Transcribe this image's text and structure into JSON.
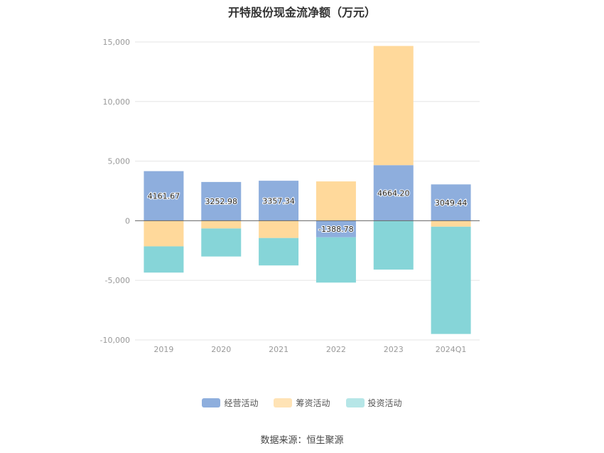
{
  "chart_data": {
    "type": "bar",
    "stacked": true,
    "title": "开特股份现金流净额（万元）",
    "categories": [
      "2019",
      "2020",
      "2021",
      "2022",
      "2023",
      "2024Q1"
    ],
    "series": [
      {
        "name": "经营活动",
        "color": "#8eaedd",
        "values": [
          4161.67,
          3252.98,
          3357.34,
          -1388.78,
          4664.2,
          3049.44
        ]
      },
      {
        "name": "筹资活动",
        "color": "#ffd99b",
        "values": [
          -2150,
          -650,
          -1450,
          3300,
          10000,
          -500
        ]
      },
      {
        "name": "投资活动",
        "color": "#86d5d8",
        "values": [
          -2200,
          -2350,
          -2300,
          -3800,
          -4100,
          -9000
        ]
      }
    ],
    "data_labels": [
      "4161.67",
      "3252.98",
      "3357.34",
      "-1388.78",
      "4664.20",
      "3049.44"
    ],
    "y_ticks": [
      "15,000",
      "10,000",
      "5,000",
      "0",
      "-5,000",
      "-10,000"
    ],
    "ylim": [
      -10000,
      15000
    ],
    "grid": true,
    "legend_position": "bottom"
  },
  "footer": {
    "source": "数据来源：恒生聚源"
  }
}
